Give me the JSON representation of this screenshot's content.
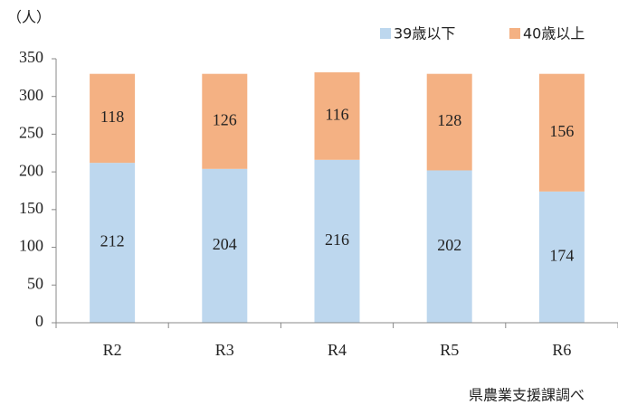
{
  "chart_data": {
    "type": "stacked_bar",
    "unit_label": "（人）",
    "source": "県農業支援課調べ",
    "categories": [
      "R2",
      "R3",
      "R4",
      "R5",
      "R6"
    ],
    "series": [
      {
        "name": "39歳以下",
        "color": "#bdd7ee",
        "values": [
          212,
          204,
          216,
          202,
          174
        ]
      },
      {
        "name": "40歳以上",
        "color": "#f4b183",
        "values": [
          118,
          126,
          116,
          128,
          156
        ]
      }
    ],
    "ylim": [
      0,
      350
    ],
    "yticks": [
      0,
      50,
      100,
      150,
      200,
      250,
      300,
      350
    ],
    "grid": false
  }
}
